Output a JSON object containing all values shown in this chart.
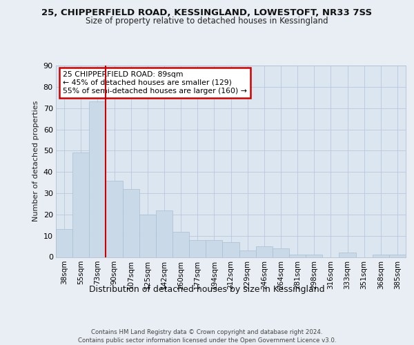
{
  "title1": "25, CHIPPERFIELD ROAD, KESSINGLAND, LOWESTOFT, NR33 7SS",
  "title2": "Size of property relative to detached houses in Kessingland",
  "xlabel": "Distribution of detached houses by size in Kessingland",
  "ylabel": "Number of detached properties",
  "bins": [
    "38sqm",
    "55sqm",
    "73sqm",
    "90sqm",
    "107sqm",
    "125sqm",
    "142sqm",
    "160sqm",
    "177sqm",
    "194sqm",
    "212sqm",
    "229sqm",
    "246sqm",
    "264sqm",
    "281sqm",
    "298sqm",
    "316sqm",
    "333sqm",
    "351sqm",
    "368sqm",
    "385sqm"
  ],
  "values": [
    13,
    49,
    73,
    36,
    32,
    20,
    22,
    12,
    8,
    8,
    7,
    3,
    5,
    4,
    1,
    1,
    0,
    2,
    0,
    1,
    1
  ],
  "bar_color": "#c9d9e8",
  "bar_edge_color": "#a8bfd4",
  "vline_color": "#cc0000",
  "annotation_text": "25 CHIPPERFIELD ROAD: 89sqm\n← 45% of detached houses are smaller (129)\n55% of semi-detached houses are larger (160) →",
  "annotation_box_edge": "#cc0000",
  "ylim": [
    0,
    90
  ],
  "yticks": [
    0,
    10,
    20,
    30,
    40,
    50,
    60,
    70,
    80,
    90
  ],
  "footer1": "Contains HM Land Registry data © Crown copyright and database right 2024.",
  "footer2": "Contains public sector information licensed under the Open Government Licence v3.0.",
  "background_color": "#e8eef4",
  "plot_bg_color": "#dce6f0"
}
